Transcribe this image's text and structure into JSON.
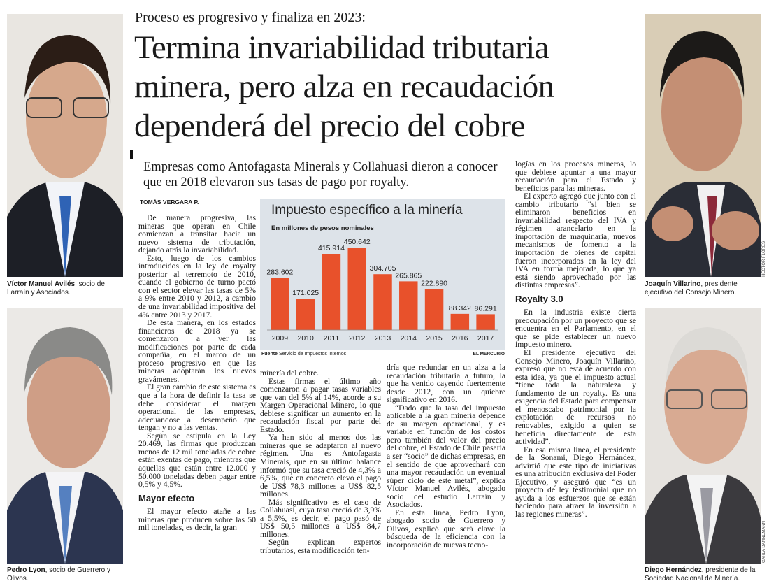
{
  "header": {
    "kicker": "Proceso es progresivo y finaliza en 2023:",
    "title": [
      "Termina invariabilidad tributaria",
      "minera, pero alza en recaudación",
      "dependerá del precio del cobre"
    ],
    "deck": "Empresas como Antofagasta Minerals y Collahuasi dieron a conocer que en 2018 elevaron sus tasas de pago por royalty.",
    "byline": "TOMÁS VERGARA P."
  },
  "photos": [
    {
      "name": "Víctor Manuel Avilés",
      "caption": ", socio de Larraín y Asociados."
    },
    {
      "name": "Pedro Lyon",
      "caption": ", socio de Guerrero y Olivos."
    },
    {
      "name": "Joaquín Villarino",
      "caption": ", presidente ejecutivo del Consejo Minero.",
      "credit": "HÉCTOR FLORES"
    },
    {
      "name": "Diego Hernández",
      "caption": ", presidente de la Sociedad Nacional de Minería.",
      "credit": "CARLA DANNEMANN"
    }
  ],
  "chart": {
    "type": "bar",
    "title": "Impuesto específico a la minería",
    "subtitle": "En millones de pesos nominales",
    "categories": [
      "2009",
      "2010",
      "2011",
      "2012",
      "2013",
      "2014",
      "2015",
      "2016",
      "2017"
    ],
    "values": [
      283602,
      171025,
      415914,
      450642,
      304705,
      265865,
      222890,
      88342,
      86291
    ],
    "value_labels": [
      "283.602",
      "171.025",
      "415.914",
      "450.642",
      "304.705",
      "265.865",
      "222.890",
      "88.342",
      "86.291"
    ],
    "color": "#e8512b",
    "source_label": "Fuente",
    "source": "Servicio de Impuestos Internos",
    "credit": "EL MERCURIO"
  },
  "columns": [
    [
      {
        "p": "De manera progresiva, las mineras que operan en Chile comienzan a transitar hacia un nuevo sistema de tributación, dejando atrás la invariabilidad."
      },
      {
        "p": "Esto, luego de los cambios introducidos en la ley de royalty posterior al terremoto de 2010, cuando el gobierno de turno pactó con el sector elevar las tasas de 5% a 9% entre 2010 y 2012, a cambio de una invariabilidad impositiva del 4% entre 2013 y 2017."
      },
      {
        "p": "De esta manera, en los estados financieros de 2018 ya se comenzaron a ver las modificaciones por parte de cada compañía, en el marco de un proceso progresivo en que las mineras adoptarán los nuevos gravámenes."
      },
      {
        "p": "El gran cambio de este sistema es que a la hora de definir la tasa se debe considerar el margen operacional de las empresas, adecuándose al desempeño que tengan y no a las ventas."
      },
      {
        "p": "Según se estipula en la Ley 20.469, las firmas que produzcan menos de 12 mil toneladas de cobre están exentas de pago, mientras que aquellas que están entre 12.000 y 50.000 toneladas deben pagar entre 0,5% y 4,5%."
      },
      {
        "h": "Mayor efecto"
      },
      {
        "p": "El mayor efecto atañe a las mineras que producen sobre las 50 mil toneladas, es decir, la gran"
      }
    ],
    [
      {
        "p": "minería del cobre."
      },
      {
        "p": "Estas firmas el último año comenzaron a pagar tasas variables que van del 5% al 14%, acorde a su Margen Operacional Minero, lo que debiese significar un aumento en la recaudación fiscal por parte del Estado."
      },
      {
        "p": "Ya han sido al menos dos las mineras que se adaptaron al nuevo régimen. Una es Antofagasta Minerals, que en su último balance informó que su tasa creció de 4,3% a 6,5%, que en concreto elevó el pago de US$ 78,3 millones a US$ 82,5 millones."
      },
      {
        "p": "Más significativo es el caso de Collahuasi, cuya tasa creció de 3,9% a 5,5%, es decir, el pago pasó de US$ 50,5 millones a US$ 84,7 millones."
      },
      {
        "p": "Según explican expertos tributarios, esta modificación ten-"
      }
    ],
    [
      {
        "p": "dría que redundar en un alza a la recaudación tributaria a futuro, la que ha venido cayendo fuertemente desde 2012, con un quiebre significativo en 2016."
      },
      {
        "p": "“Dado que la tasa del impuesto aplicable a la gran minería depende de su margen operacional, y es variable en función de los costos pero también del valor del precio del cobre, el Estado de Chile pasaría a ser “socio” de dichas empresas, en el sentido de que aprovechará con una mayor recaudación un eventual súper ciclo de este metal”, explica Víctor Manuel Avilés, abogado socio del estudio Larraín y Asociados."
      },
      {
        "p": "En esta línea, Pedro Lyon, abogado socio de Guerrero y Olivos, explicó que será clave la búsqueda de la eficiencia con la incorporación de nuevas tecno-"
      }
    ],
    [
      {
        "p": "logías en los procesos mineros, lo que debiese apuntar a una mayor recaudación para el Estado y beneficios para las mineras."
      },
      {
        "p": "El experto agregó que junto con el cambio tributario “si bien se eliminaron beneficios en invariabilidad respecto del IVA y régimen arancelario en la importación de maquinaria, nuevos mecanismos de fomento a la importación de bienes de capital fueron incorporados en la ley del IVA en forma mejorada, lo que ya está siendo aprovechado por las distintas empresas”."
      },
      {
        "h": "Royalty 3.0"
      },
      {
        "p": "En la industria existe cierta preocupación por un proyecto que se encuentra en el Parlamento, en el que se pide establecer un nuevo impuesto minero."
      },
      {
        "p": "El presidente ejecutivo del Consejo Minero, Joaquín Villarino, expresó que no está de acuerdo con esta idea, ya que el impuesto actual “tiene toda la naturaleza y fundamento de un royalty. Es una exigencia del Estado para compensar el menoscabo patrimonial por la explotación de recursos no renovables, exigido a quien se beneficia directamente de esta actividad”."
      },
      {
        "p": "En esa misma línea, el presidente de la Sonami, Diego Hernández, advirtió que este tipo de iniciativas es una atribución exclusiva del Poder Ejecutivo, y aseguró que “es un proyecto de ley testimonial que no ayuda a los esfuerzos que se están haciendo para atraer la inversión a las regiones mineras”."
      }
    ]
  ]
}
